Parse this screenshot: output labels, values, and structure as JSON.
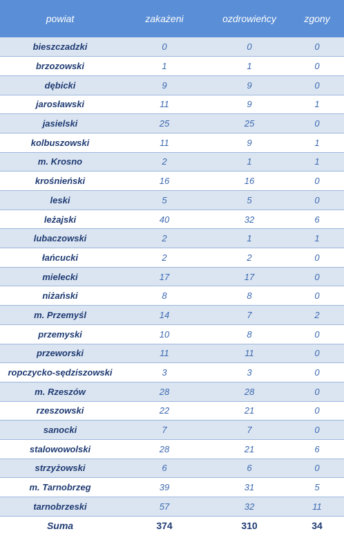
{
  "headers": [
    "powiat",
    "zakażeni",
    "ozdrowieńcy",
    "zgony"
  ],
  "rows": [
    [
      "bieszczadzki",
      "0",
      "0",
      "0"
    ],
    [
      "brzozowski",
      "1",
      "1",
      "0"
    ],
    [
      "dębicki",
      "9",
      "9",
      "0"
    ],
    [
      "jarosławski",
      "11",
      "9",
      "1"
    ],
    [
      "jasielski",
      "25",
      "25",
      "0"
    ],
    [
      "kolbuszowski",
      "11",
      "9",
      "1"
    ],
    [
      "m. Krosno",
      "2",
      "1",
      "1"
    ],
    [
      "krośnieński",
      "16",
      "16",
      "0"
    ],
    [
      "leski",
      "5",
      "5",
      "0"
    ],
    [
      "leżajski",
      "40",
      "32",
      "6"
    ],
    [
      "lubaczowski",
      "2",
      "1",
      "1"
    ],
    [
      "łańcucki",
      "2",
      "2",
      "0"
    ],
    [
      "mielecki",
      "17",
      "17",
      "0"
    ],
    [
      "niżański",
      "8",
      "8",
      "0"
    ],
    [
      "m. Przemyśl",
      "14",
      "7",
      "2"
    ],
    [
      "przemyski",
      "10",
      "8",
      "0"
    ],
    [
      "przeworski",
      "11",
      "11",
      "0"
    ],
    [
      "ropczycko-sędziszowski",
      "3",
      "3",
      "0"
    ],
    [
      "m. Rzeszów",
      "28",
      "28",
      "0"
    ],
    [
      "rzeszowski",
      "22",
      "21",
      "0"
    ],
    [
      "sanocki",
      "7",
      "7",
      "0"
    ],
    [
      "stalowowolski",
      "28",
      "21",
      "6"
    ],
    [
      "strzyżowski",
      "6",
      "6",
      "0"
    ],
    [
      "m. Tarnobrzeg",
      "39",
      "31",
      "5"
    ],
    [
      "tarnobrzeski",
      "57",
      "32",
      "11"
    ]
  ],
  "total": [
    "Suma",
    "374",
    "310",
    "34"
  ]
}
